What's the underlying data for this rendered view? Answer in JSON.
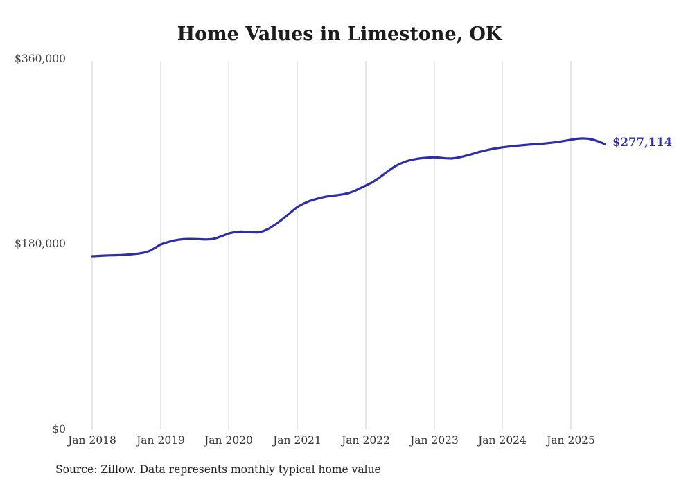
{
  "title": "Home Values in Limestone, OK",
  "source_note": "Source: Zillow. Data represents monthly typical home value",
  "end_label": "$277,114",
  "colors": {
    "line": "#2d2da8",
    "label": "#2d2da8",
    "grid": "#cccccc",
    "title": "#1c1c1c",
    "axis": "#444444",
    "background": "#ffffff"
  },
  "chart_data": {
    "type": "line",
    "title": "Home Values in Limestone, OK",
    "xlabel": "",
    "ylabel": "",
    "ylim": [
      0,
      360000
    ],
    "y_tick_values": [
      0,
      180000,
      360000
    ],
    "y_tick_labels": [
      "$0",
      "$180,000",
      "$360,000"
    ],
    "x_tick_labels": [
      "Jan 2018",
      "Jan 2019",
      "Jan 2020",
      "Jan 2021",
      "Jan 2022",
      "Jan 2023",
      "Jan 2024",
      "Jan 2025"
    ],
    "x_unit": "month",
    "x_range": [
      "2018-01",
      "2025-07"
    ],
    "grid": "vertical-only",
    "legend": "none",
    "end_value": 277114,
    "end_value_label": "$277,114",
    "series": [
      {
        "name": "Typical home value",
        "values": [
          168200,
          168500,
          168800,
          169000,
          169200,
          169400,
          169700,
          170100,
          170700,
          171600,
          173200,
          176200,
          179600,
          181500,
          183000,
          184200,
          184800,
          185000,
          184900,
          184700,
          184500,
          184800,
          186200,
          188300,
          190400,
          191600,
          192200,
          192000,
          191500,
          191300,
          192500,
          195000,
          198500,
          202500,
          207000,
          211500,
          216000,
          219000,
          221500,
          223300,
          224800,
          226000,
          226800,
          227500,
          228300,
          229500,
          231500,
          234200,
          236800,
          239500,
          243000,
          247000,
          251200,
          255000,
          258000,
          260200,
          261800,
          262800,
          263500,
          264000,
          264400,
          263900,
          263300,
          263100,
          263800,
          265000,
          266400,
          268000,
          269600,
          271000,
          272200,
          273200,
          274000,
          274700,
          275300,
          275800,
          276300,
          276800,
          277200,
          277600,
          278100,
          278700,
          279500,
          280400,
          281400,
          282300,
          282700,
          282400,
          281300,
          279300,
          277114
        ]
      }
    ]
  }
}
